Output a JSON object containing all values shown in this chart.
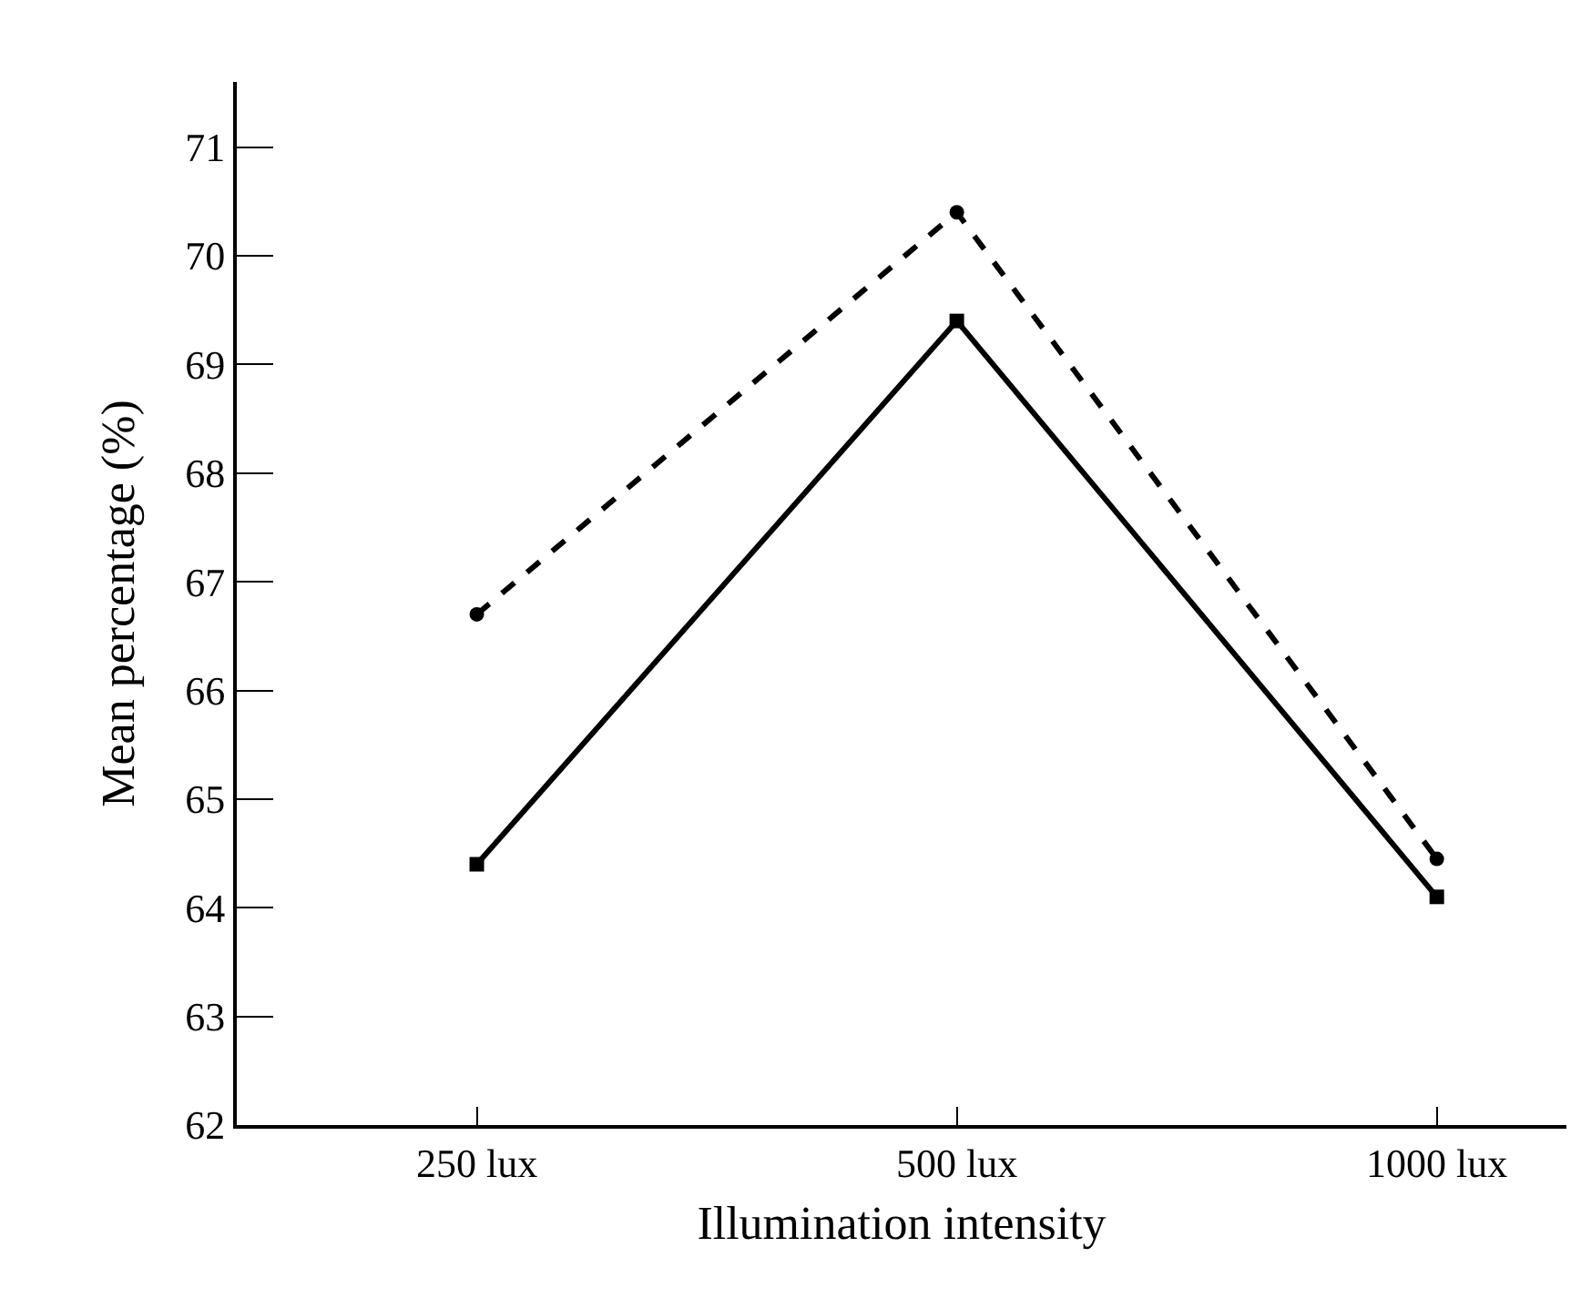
{
  "chart_data": {
    "type": "line",
    "xlabel": "Illumination intensity",
    "ylabel": "Mean percentage (%)",
    "categories": [
      "250 lux",
      "500 lux",
      "1000 lux"
    ],
    "series": [
      {
        "color": "#000000",
        "values": [
          66.7,
          70.4,
          64.45
        ],
        "line_style": "dashed",
        "marker": "circle"
      },
      {
        "color": "#000000",
        "values": [
          64.4,
          69.4,
          64.1
        ],
        "line_style": "solid",
        "marker": "square"
      }
    ],
    "ylim": [
      62,
      71.6
    ],
    "yticks": [
      62,
      63,
      64,
      65,
      66,
      67,
      68,
      69,
      70,
      71
    ]
  }
}
